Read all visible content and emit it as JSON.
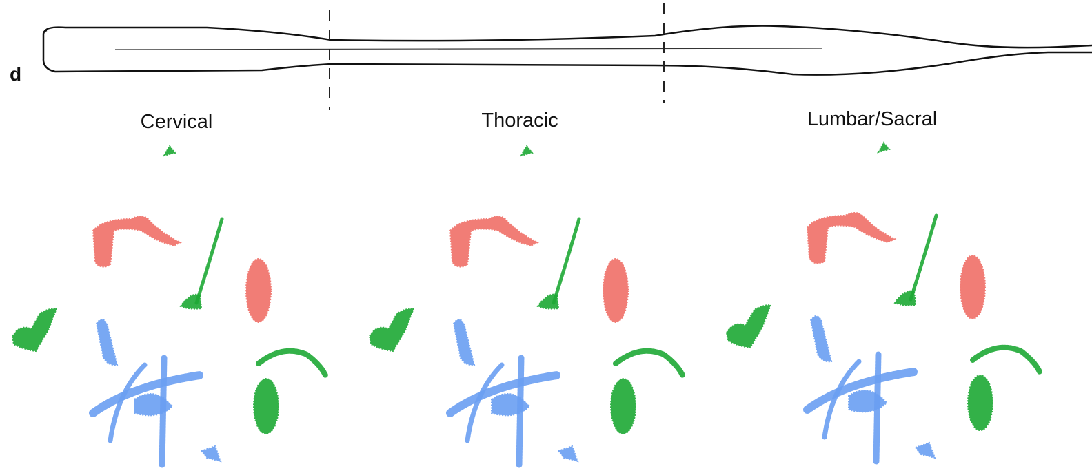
{
  "panel_label": "d",
  "panels": [
    {
      "title": "Cervical"
    },
    {
      "title": "Thoracic"
    },
    {
      "title": "Lumbar/Sacral"
    }
  ]
}
